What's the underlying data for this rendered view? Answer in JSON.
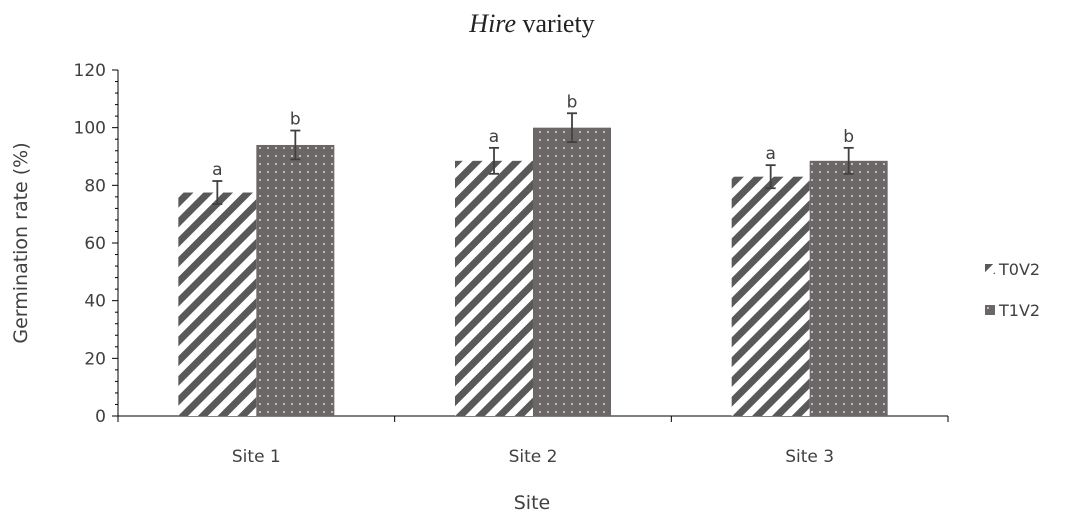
{
  "chart_data": {
    "type": "bar",
    "title_italic": "Hire",
    "title_rest": " variety",
    "xlabel": "Site",
    "ylabel": "Germination rate (%)",
    "categories": [
      "Site 1",
      "Site 2",
      "Site 3"
    ],
    "ylim": [
      0,
      120
    ],
    "yticks": [
      0,
      20,
      40,
      60,
      80,
      100,
      120
    ],
    "series": [
      {
        "name": "T0V2",
        "values": [
          77.5,
          88.5,
          83
        ],
        "errors": [
          4,
          4.5,
          4
        ],
        "labels": [
          "a",
          "a",
          "a"
        ],
        "pattern": "diagonal-stripes",
        "color": "#595959"
      },
      {
        "name": "T1V2",
        "values": [
          94,
          100,
          88.5
        ],
        "errors": [
          5,
          5,
          4.5
        ],
        "labels": [
          "b",
          "b",
          "b"
        ],
        "pattern": "dots",
        "color": "#6b6767"
      }
    ],
    "grid": false,
    "legend_position": "right"
  }
}
